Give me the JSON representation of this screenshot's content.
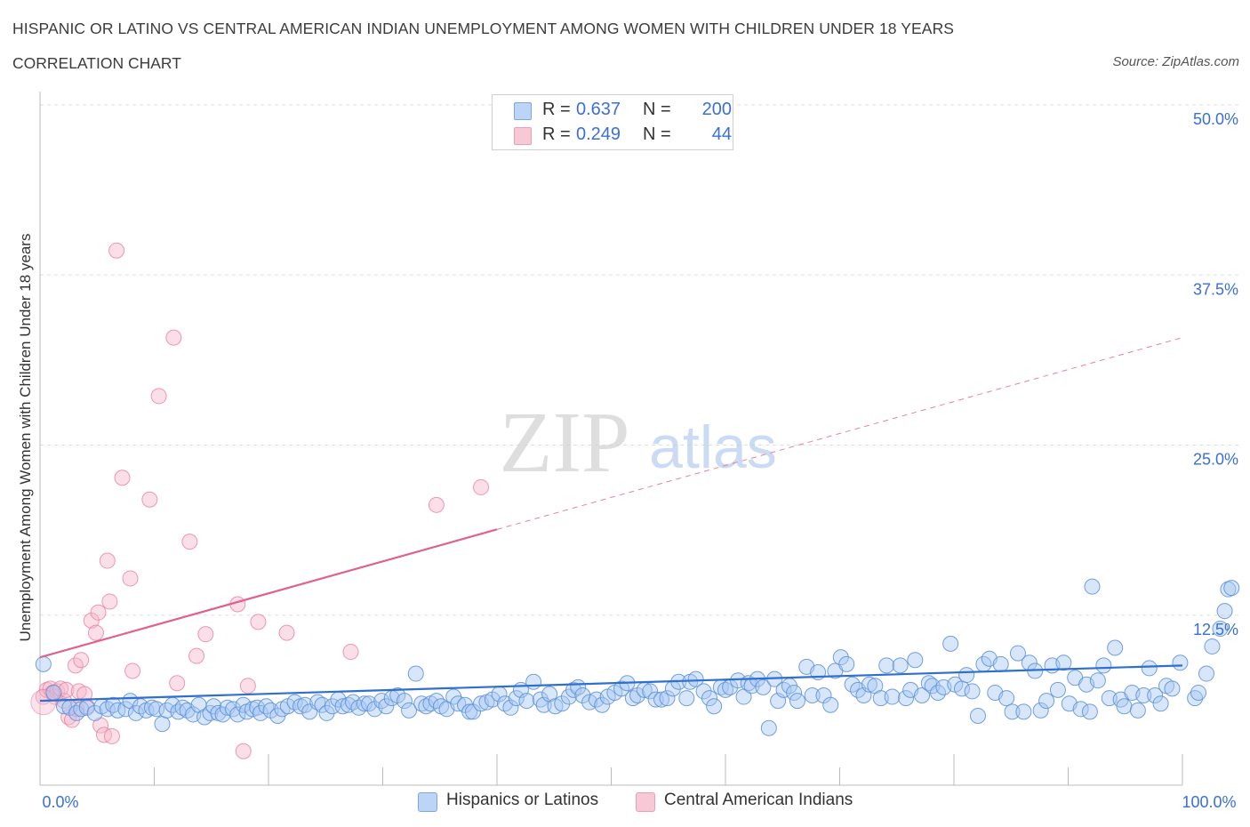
{
  "header": {
    "title": "HISPANIC OR LATINO VS CENTRAL AMERICAN INDIAN UNEMPLOYMENT AMONG WOMEN WITH CHILDREN UNDER 18 YEARS",
    "subtitle": "CORRELATION CHART",
    "source": "Source: ZipAtlas.com"
  },
  "watermark": {
    "zip": "ZIP",
    "atlas": "atlas"
  },
  "legend": {
    "rows": [
      {
        "r_label": "R =",
        "r_value": "0.637",
        "n_label": "N =",
        "n_value": "200"
      },
      {
        "r_label": "R =",
        "r_value": "0.249",
        "n_label": "N =",
        "n_value": "44"
      }
    ]
  },
  "colors": {
    "blue_fill": "#a8c8f5",
    "blue_stroke": "#5b8fd9",
    "blue_line": "#2f6fd0",
    "pink_fill": "#f7b9cc",
    "pink_stroke": "#e8809e",
    "pink_line": "#e06090",
    "axis_text": "#3a6fd8",
    "grid": "#dddddd"
  },
  "chart_data": {
    "type": "scatter",
    "title": "HISPANIC OR LATINO VS CENTRAL AMERICAN INDIAN UNEMPLOYMENT AMONG WOMEN WITH CHILDREN UNDER 18 YEARS",
    "xlabel": "",
    "ylabel": "Unemployment Among Women with Children Under 18 years",
    "xlim": [
      0,
      100
    ],
    "ylim": [
      0,
      50
    ],
    "x_tick_labels": [
      "0.0%",
      "100.0%"
    ],
    "y_ticks": [
      12.5,
      25.0,
      37.5,
      50.0
    ],
    "y_tick_labels": [
      "12.5%",
      "25.0%",
      "37.5%",
      "50.0%"
    ],
    "grid": true,
    "legend_position": "bottom",
    "series": [
      {
        "name": "Hispanics or Latinos",
        "color": "#5b8fd9",
        "r": 0.637,
        "n": 200,
        "trend": {
          "x": [
            0,
            100
          ],
          "y": [
            6.2,
            8.8
          ]
        },
        "points": [
          [
            0.3,
            8.9
          ],
          [
            1.2,
            6.8
          ],
          [
            2.1,
            5.8
          ],
          [
            2.6,
            5.7
          ],
          [
            3.2,
            5.3
          ],
          [
            3.6,
            5.6
          ],
          [
            4.1,
            5.7
          ],
          [
            4.8,
            5.3
          ],
          [
            5.4,
            5.8
          ],
          [
            5.9,
            5.6
          ],
          [
            6.4,
            5.9
          ],
          [
            6.8,
            5.5
          ],
          [
            7.5,
            5.6
          ],
          [
            7.9,
            6.2
          ],
          [
            8.4,
            5.3
          ],
          [
            8.8,
            5.8
          ],
          [
            9.3,
            5.5
          ],
          [
            9.8,
            5.7
          ],
          [
            10.2,
            5.6
          ],
          [
            10.7,
            4.5
          ],
          [
            11.1,
            5.5
          ],
          [
            11.6,
            5.9
          ],
          [
            12.1,
            5.4
          ],
          [
            12.5,
            5.7
          ],
          [
            12.9,
            5.5
          ],
          [
            13.4,
            5.2
          ],
          [
            13.9,
            5.9
          ],
          [
            14.4,
            5.0
          ],
          [
            14.9,
            5.3
          ],
          [
            15.2,
            5.8
          ],
          [
            15.6,
            5.3
          ],
          [
            16.0,
            5.2
          ],
          [
            16.4,
            5.7
          ],
          [
            16.9,
            5.6
          ],
          [
            17.3,
            5.2
          ],
          [
            17.8,
            5.9
          ],
          [
            18.1,
            5.4
          ],
          [
            18.6,
            5.6
          ],
          [
            19.0,
            5.7
          ],
          [
            19.3,
            5.3
          ],
          [
            19.8,
            5.8
          ],
          [
            20.2,
            5.5
          ],
          [
            20.8,
            5.1
          ],
          [
            21.2,
            5.6
          ],
          [
            21.7,
            5.8
          ],
          [
            22.3,
            6.1
          ],
          [
            22.8,
            5.8
          ],
          [
            23.2,
            5.9
          ],
          [
            23.6,
            5.4
          ],
          [
            24.3,
            6.1
          ],
          [
            24.7,
            5.9
          ],
          [
            25.1,
            5.3
          ],
          [
            25.6,
            5.8
          ],
          [
            26.1,
            6.3
          ],
          [
            26.5,
            5.8
          ],
          [
            27.0,
            5.9
          ],
          [
            27.4,
            6.1
          ],
          [
            27.9,
            5.7
          ],
          [
            28.4,
            6.0
          ],
          [
            28.8,
            6.0
          ],
          [
            29.3,
            5.6
          ],
          [
            29.9,
            6.2
          ],
          [
            30.3,
            5.8
          ],
          [
            30.8,
            6.4
          ],
          [
            31.3,
            6.6
          ],
          [
            31.9,
            6.2
          ],
          [
            32.3,
            5.5
          ],
          [
            32.9,
            8.2
          ],
          [
            33.4,
            6.0
          ],
          [
            33.8,
            5.8
          ],
          [
            34.2,
            6.0
          ],
          [
            34.7,
            6.2
          ],
          [
            35.1,
            5.8
          ],
          [
            35.6,
            5.6
          ],
          [
            36.2,
            6.5
          ],
          [
            36.6,
            6.0
          ],
          [
            37.2,
            5.9
          ],
          [
            37.6,
            5.4
          ],
          [
            37.9,
            5.4
          ],
          [
            38.6,
            6.0
          ],
          [
            39.1,
            6.1
          ],
          [
            39.6,
            6.3
          ],
          [
            40.2,
            6.7
          ],
          [
            40.7,
            6.0
          ],
          [
            41.2,
            5.7
          ],
          [
            41.7,
            6.4
          ],
          [
            42.1,
            7.0
          ],
          [
            42.6,
            6.2
          ],
          [
            43.2,
            7.6
          ],
          [
            43.8,
            6.3
          ],
          [
            44.1,
            5.9
          ],
          [
            44.6,
            6.7
          ],
          [
            45.1,
            5.8
          ],
          [
            45.7,
            6.0
          ],
          [
            46.3,
            6.5
          ],
          [
            46.7,
            7.0
          ],
          [
            47.1,
            7.2
          ],
          [
            47.5,
            6.6
          ],
          [
            48.1,
            6.1
          ],
          [
            48.7,
            6.3
          ],
          [
            49.2,
            5.9
          ],
          [
            49.7,
            6.5
          ],
          [
            50.3,
            6.8
          ],
          [
            50.9,
            7.1
          ],
          [
            51.4,
            7.5
          ],
          [
            51.9,
            6.4
          ],
          [
            52.3,
            6.6
          ],
          [
            52.9,
            7.0
          ],
          [
            53.4,
            6.9
          ],
          [
            53.9,
            6.3
          ],
          [
            54.4,
            6.3
          ],
          [
            54.9,
            6.4
          ],
          [
            55.4,
            7.1
          ],
          [
            55.9,
            7.6
          ],
          [
            56.6,
            6.4
          ],
          [
            56.9,
            7.6
          ],
          [
            57.4,
            7.8
          ],
          [
            58.1,
            6.9
          ],
          [
            58.6,
            6.4
          ],
          [
            59.0,
            5.8
          ],
          [
            59.6,
            7.2
          ],
          [
            60.0,
            7.0
          ],
          [
            60.4,
            7.2
          ],
          [
            61.1,
            7.7
          ],
          [
            61.6,
            6.5
          ],
          [
            62.0,
            7.5
          ],
          [
            62.3,
            7.3
          ],
          [
            62.8,
            7.8
          ],
          [
            63.3,
            7.2
          ],
          [
            63.8,
            4.2
          ],
          [
            64.3,
            7.8
          ],
          [
            64.6,
            6.2
          ],
          [
            65.1,
            7.0
          ],
          [
            65.6,
            7.3
          ],
          [
            66.0,
            6.8
          ],
          [
            66.3,
            6.2
          ],
          [
            67.1,
            8.7
          ],
          [
            67.6,
            6.6
          ],
          [
            68.1,
            8.3
          ],
          [
            68.6,
            6.6
          ],
          [
            69.2,
            5.9
          ],
          [
            69.6,
            8.4
          ],
          [
            70.1,
            9.4
          ],
          [
            70.6,
            8.9
          ],
          [
            71.1,
            7.4
          ],
          [
            71.6,
            7.0
          ],
          [
            72.1,
            6.6
          ],
          [
            72.6,
            7.4
          ],
          [
            73.1,
            7.3
          ],
          [
            73.6,
            6.4
          ],
          [
            74.1,
            8.8
          ],
          [
            74.6,
            6.5
          ],
          [
            75.3,
            8.8
          ],
          [
            75.8,
            6.4
          ],
          [
            76.2,
            7.0
          ],
          [
            76.6,
            9.2
          ],
          [
            77.2,
            6.6
          ],
          [
            77.8,
            7.5
          ],
          [
            78.1,
            7.3
          ],
          [
            78.6,
            6.8
          ],
          [
            79.1,
            7.2
          ],
          [
            79.7,
            10.4
          ],
          [
            80.1,
            7.4
          ],
          [
            80.7,
            7.1
          ],
          [
            81.1,
            8.1
          ],
          [
            81.6,
            6.9
          ],
          [
            82.1,
            5.1
          ],
          [
            82.6,
            8.9
          ],
          [
            83.1,
            9.3
          ],
          [
            83.6,
            6.8
          ],
          [
            84.1,
            8.9
          ],
          [
            84.6,
            6.4
          ],
          [
            85.1,
            5.4
          ],
          [
            85.6,
            9.7
          ],
          [
            86.1,
            5.4
          ],
          [
            86.6,
            9.0
          ],
          [
            87.1,
            8.4
          ],
          [
            87.6,
            5.5
          ],
          [
            88.1,
            6.2
          ],
          [
            88.6,
            8.8
          ],
          [
            89.1,
            7.0
          ],
          [
            89.6,
            9.0
          ],
          [
            90.1,
            6.0
          ],
          [
            90.6,
            7.9
          ],
          [
            91.1,
            5.6
          ],
          [
            91.6,
            7.4
          ],
          [
            91.9,
            5.4
          ],
          [
            92.6,
            7.7
          ],
          [
            93.1,
            8.8
          ],
          [
            93.6,
            6.4
          ],
          [
            94.1,
            10.1
          ],
          [
            94.6,
            6.3
          ],
          [
            94.9,
            5.8
          ],
          [
            95.6,
            6.8
          ],
          [
            96.1,
            5.5
          ],
          [
            96.6,
            6.6
          ],
          [
            97.1,
            8.6
          ],
          [
            97.6,
            6.6
          ],
          [
            98.1,
            6.0
          ],
          [
            98.6,
            7.3
          ],
          [
            99.1,
            7.1
          ],
          [
            99.8,
            9.0
          ],
          [
            101.1,
            6.4
          ],
          [
            101.4,
            6.8
          ],
          [
            102.1,
            8.2
          ],
          [
            102.6,
            10.2
          ],
          [
            103.3,
            11.5
          ],
          [
            103.7,
            12.8
          ],
          [
            104.0,
            14.4
          ],
          [
            104.3,
            14.5
          ],
          [
            92.1,
            14.6
          ]
        ]
      },
      {
        "name": "Central American Indians",
        "color": "#e8809e",
        "r": 0.249,
        "n": 44,
        "trend": {
          "x": [
            0,
            40
          ],
          "y": [
            9.4,
            18.8
          ]
        },
        "trend_dashed": {
          "x": [
            40,
            100
          ],
          "y": [
            18.8,
            32.9
          ]
        },
        "points": [
          [
            0.3,
            6.5
          ],
          [
            0.6,
            7.0
          ],
          [
            0.9,
            7.1
          ],
          [
            1.1,
            6.8
          ],
          [
            1.3,
            6.5
          ],
          [
            1.5,
            6.9
          ],
          [
            1.8,
            7.1
          ],
          [
            2.1,
            6.2
          ],
          [
            2.3,
            7.0
          ],
          [
            2.5,
            5.0
          ],
          [
            2.8,
            4.8
          ],
          [
            3.1,
            8.8
          ],
          [
            3.2,
            5.6
          ],
          [
            3.4,
            6.9
          ],
          [
            3.6,
            9.2
          ],
          [
            3.9,
            6.7
          ],
          [
            4.1,
            5.8
          ],
          [
            4.5,
            12.1
          ],
          [
            4.9,
            11.2
          ],
          [
            5.1,
            12.7
          ],
          [
            5.3,
            4.4
          ],
          [
            5.6,
            3.7
          ],
          [
            5.9,
            16.5
          ],
          [
            6.1,
            13.5
          ],
          [
            6.3,
            3.6
          ],
          [
            6.7,
            39.3
          ],
          [
            7.2,
            22.6
          ],
          [
            7.9,
            15.2
          ],
          [
            8.1,
            8.4
          ],
          [
            9.6,
            21.0
          ],
          [
            10.4,
            28.6
          ],
          [
            11.7,
            32.9
          ],
          [
            12.0,
            7.5
          ],
          [
            13.1,
            17.9
          ],
          [
            13.7,
            9.5
          ],
          [
            14.5,
            11.1
          ],
          [
            17.3,
            13.3
          ],
          [
            17.8,
            2.5
          ],
          [
            18.2,
            7.3
          ],
          [
            19.1,
            12.0
          ],
          [
            21.6,
            11.2
          ],
          [
            27.2,
            9.8
          ],
          [
            34.7,
            20.6
          ],
          [
            38.6,
            21.9
          ]
        ]
      }
    ]
  },
  "x_axis": {
    "min_label": "0.0%",
    "max_label": "100.0%"
  },
  "y_axis": {
    "label": "Unemployment Among Women with Children Under 18 years"
  },
  "bottom_legend": [
    {
      "label": "Hispanics or Latinos"
    },
    {
      "label": "Central American Indians"
    }
  ]
}
